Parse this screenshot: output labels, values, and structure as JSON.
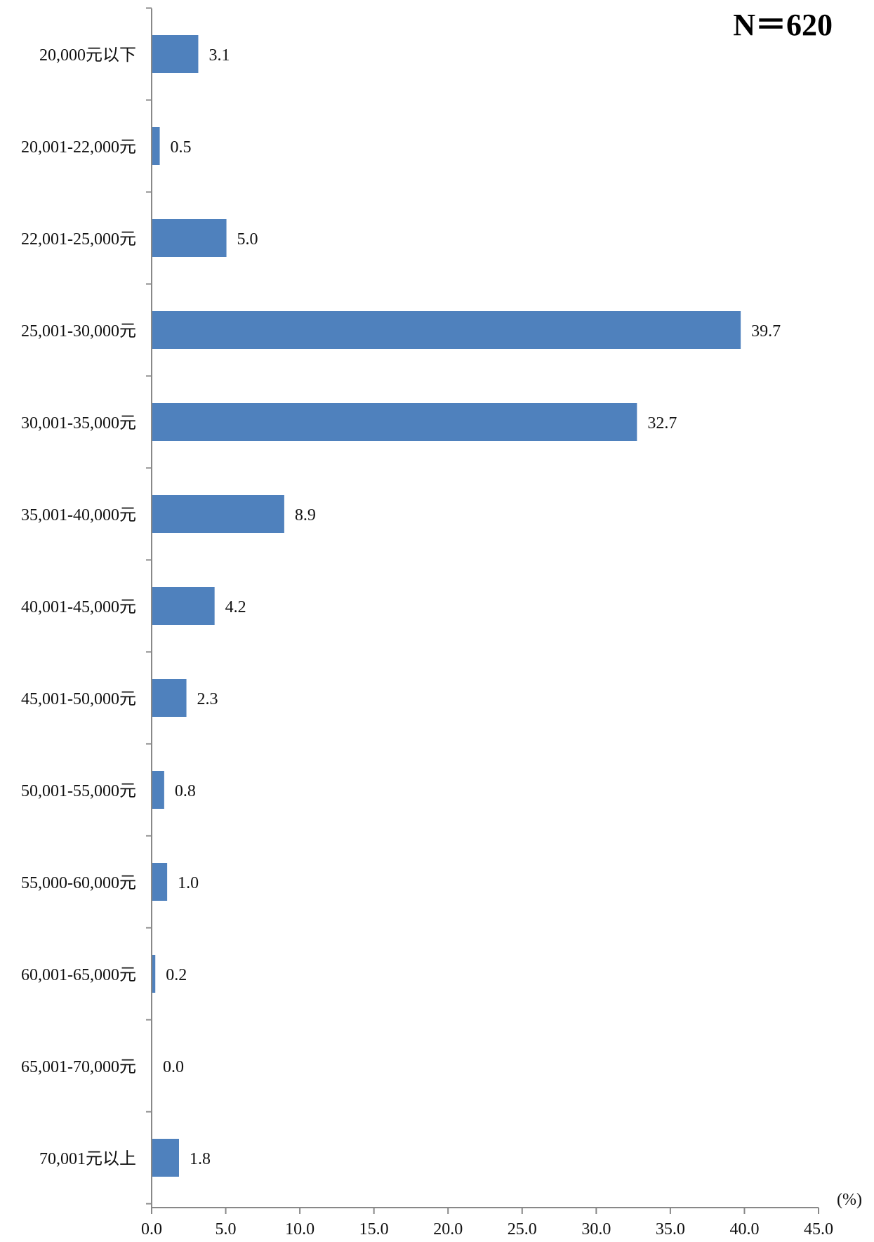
{
  "chart_data": {
    "type": "bar",
    "orientation": "horizontal",
    "annotation": "N＝620",
    "unit": "(%)",
    "categories": [
      "20,000元以下",
      "20,001-22,000元",
      "22,001-25,000元",
      "25,001-30,000元",
      "30,001-35,000元",
      "35,001-40,000元",
      "40,001-45,000元",
      "45,001-50,000元",
      "50,001-55,000元",
      "55,000-60,000元",
      "60,001-65,000元",
      "65,001-70,000元",
      "70,001元以上"
    ],
    "values": [
      3.1,
      0.5,
      5.0,
      39.7,
      32.7,
      8.9,
      4.2,
      2.3,
      0.8,
      1.0,
      0.2,
      0.0,
      1.8
    ],
    "value_labels": [
      "3.1",
      "0.5",
      "5.0",
      "39.7",
      "32.7",
      "8.9",
      "4.2",
      "2.3",
      "0.8",
      "1.0",
      "0.2",
      "0.0",
      "1.8"
    ],
    "xlim": [
      0,
      45
    ],
    "xticks": [
      0,
      5,
      10,
      15,
      20,
      25,
      30,
      35,
      40,
      45
    ],
    "xtick_labels": [
      "0.0",
      "5.0",
      "10.0",
      "15.0",
      "20.0",
      "25.0",
      "30.0",
      "35.0",
      "40.0",
      "45.0"
    ],
    "grid": false,
    "legend": "none",
    "bar_color": "#4F81BD",
    "axis_color": "#888888"
  }
}
